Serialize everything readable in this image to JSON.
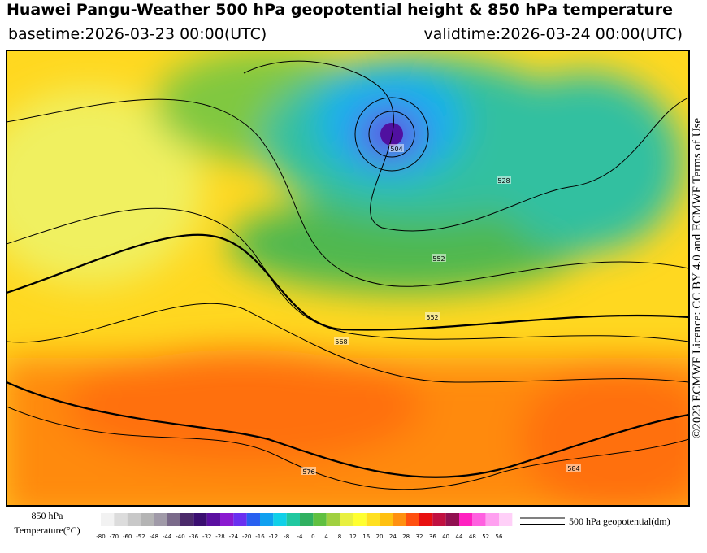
{
  "header": {
    "title": "Huawei Pangu-Weather 500 hPa geopotential height & 850 hPa temperature",
    "basetime": "basetime:2026-03-23 00:00(UTC)",
    "validtime": "validtime:2026-03-24 00:00(UTC)"
  },
  "credit": "©2023 ECMWF Licence: CC BY 4.0 and ECMWF Terms of Use",
  "colorbar": {
    "title": "850 hPa",
    "subtitle": "Temperature(°C)",
    "ticks": [
      -80,
      -70,
      -60,
      -52,
      -48,
      -44,
      -40,
      -36,
      -32,
      -28,
      -24,
      -20,
      -16,
      -12,
      -8,
      -4,
      0,
      4,
      8,
      12,
      16,
      20,
      24,
      28,
      32,
      36,
      40,
      44,
      48,
      52,
      56
    ],
    "colors": [
      "#f2f2f2",
      "#dcdcdc",
      "#c8c8c8",
      "#b4b4b4",
      "#a09aa8",
      "#7a6a8a",
      "#4b2a6a",
      "#3a0e70",
      "#5a0fa0",
      "#8a1ad0",
      "#6a30f0",
      "#2860f0",
      "#10a0f0",
      "#10d0e8",
      "#20c8a0",
      "#30b060",
      "#60c040",
      "#a0d040",
      "#e8f040",
      "#ffff30",
      "#ffe020",
      "#ffc010",
      "#ff9010",
      "#ff5010",
      "#e81010",
      "#c01040",
      "#901050",
      "#ff20c0",
      "#ff60e0",
      "#ffa0f0",
      "#ffd0f8"
    ]
  },
  "legend": {
    "label": "500 hPa geopotential(dm)"
  },
  "contour_labels": [
    "552",
    "568",
    "576",
    "584",
    "552",
    "504",
    "528"
  ]
}
